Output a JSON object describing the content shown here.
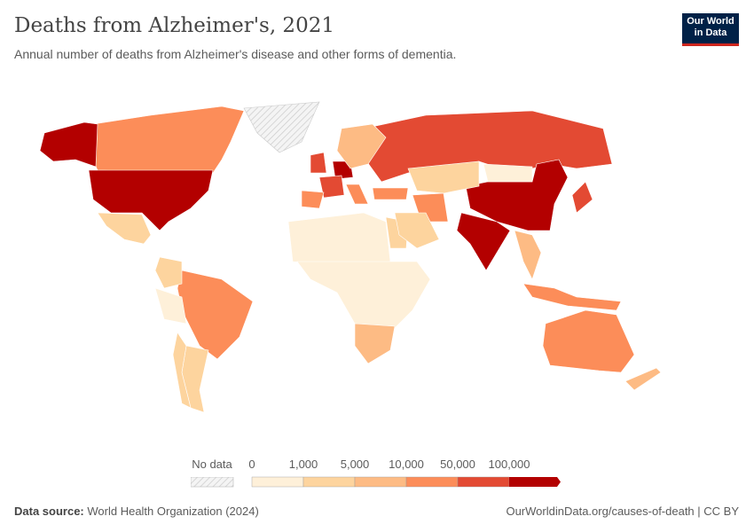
{
  "header": {
    "title": "Deaths from Alzheimer's, 2021",
    "subtitle": "Annual number of deaths from Alzheimer's disease and other forms of dementia.",
    "logo": [
      "Our World",
      "in Data"
    ]
  },
  "legend": {
    "no_data_label": "No data",
    "ticks": [
      "0",
      "1,000",
      "5,000",
      "10,000",
      "50,000",
      "100,000"
    ],
    "bins": [
      {
        "range": "0–1,000",
        "color": "#fef0d9"
      },
      {
        "range": "1,000–5,000",
        "color": "#fdd49e"
      },
      {
        "range": "5,000–10,000",
        "color": "#fdbb84"
      },
      {
        "range": "10,000–50,000",
        "color": "#fc8d59"
      },
      {
        "range": "50,000–100,000",
        "color": "#e34a33"
      },
      {
        "range": ">100,000",
        "color": "#b30000"
      }
    ],
    "no_data_color": "#e8e8e8"
  },
  "map_regions": [
    {
      "name": "Canada",
      "bin": 3
    },
    {
      "name": "Alaska (United States)",
      "bin": 5
    },
    {
      "name": "United States",
      "bin": 5
    },
    {
      "name": "Mexico",
      "bin": 1
    },
    {
      "name": "Greenland",
      "bin": -1
    },
    {
      "name": "Brazil",
      "bin": 3
    },
    {
      "name": "Argentina",
      "bin": 1
    },
    {
      "name": "Colombia",
      "bin": 1
    },
    {
      "name": "Peru",
      "bin": 0
    },
    {
      "name": "Chile",
      "bin": 1
    },
    {
      "name": "Russia",
      "bin": 4
    },
    {
      "name": "China",
      "bin": 5
    },
    {
      "name": "India",
      "bin": 5
    },
    {
      "name": "Kazakhstan",
      "bin": 1
    },
    {
      "name": "Iran",
      "bin": 3
    },
    {
      "name": "Japan",
      "bin": 4
    },
    {
      "name": "Australia",
      "bin": 3
    },
    {
      "name": "Indonesia",
      "bin": 3
    },
    {
      "name": "New Zealand",
      "bin": 2
    },
    {
      "name": "North Africa",
      "bin": 0
    },
    {
      "name": "Sub-Saharan Africa",
      "bin": 0
    },
    {
      "name": "South Africa",
      "bin": 2
    },
    {
      "name": "Egypt",
      "bin": 1
    },
    {
      "name": "United Kingdom",
      "bin": 4
    },
    {
      "name": "Germany",
      "bin": 5
    },
    {
      "name": "France",
      "bin": 4
    },
    {
      "name": "Spain",
      "bin": 3
    },
    {
      "name": "Italy",
      "bin": 3
    },
    {
      "name": "Scandinavia",
      "bin": 2
    },
    {
      "name": "Turkey",
      "bin": 3
    },
    {
      "name": "Saudi Arabia",
      "bin": 1
    },
    {
      "name": "Southeast Asia",
      "bin": 2
    },
    {
      "name": "Mongolia",
      "bin": 0
    }
  ],
  "footer": {
    "source_label": "Data source:",
    "source": "World Health Organization (2024)",
    "link": "OurWorldinData.org/causes-of-death | CC BY"
  }
}
